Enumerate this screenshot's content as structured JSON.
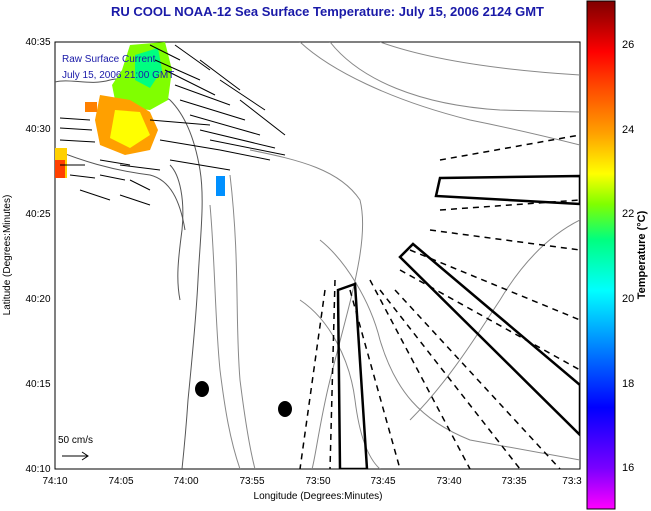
{
  "title": "RU COOL  NOAA-12  Sea Surface Temperature:  July 15, 2006 2124 GMT",
  "overlay": {
    "line1": "Raw Surface Current",
    "line2": "July 15, 2006 21:00 GMT"
  },
  "axes": {
    "xlabel": "Longitude (Degrees:Minutes)",
    "ylabel": "Latitude (Degrees:Minutes)",
    "xticks": [
      "74:10",
      "74:05",
      "74:00",
      "73:55",
      "73:50",
      "73:45",
      "73:40",
      "73:35",
      "73:3"
    ],
    "yticks": [
      "40:35",
      "40:30",
      "40:25",
      "40:20",
      "40:15",
      "40:10"
    ]
  },
  "scale_label": "50 cm/s",
  "colorbar": {
    "label": "Temperature (°C)",
    "ticks": [
      "26",
      "24",
      "22",
      "20",
      "18",
      "16"
    ],
    "range": [
      15,
      27.3
    ],
    "colors": [
      "#ff00ff",
      "#7a00ff",
      "#0000ff",
      "#0090ff",
      "#00ffff",
      "#00ff80",
      "#80ff00",
      "#ffff00",
      "#ffa000",
      "#ff4000",
      "#ff0000",
      "#b00000",
      "#800000"
    ]
  }
}
